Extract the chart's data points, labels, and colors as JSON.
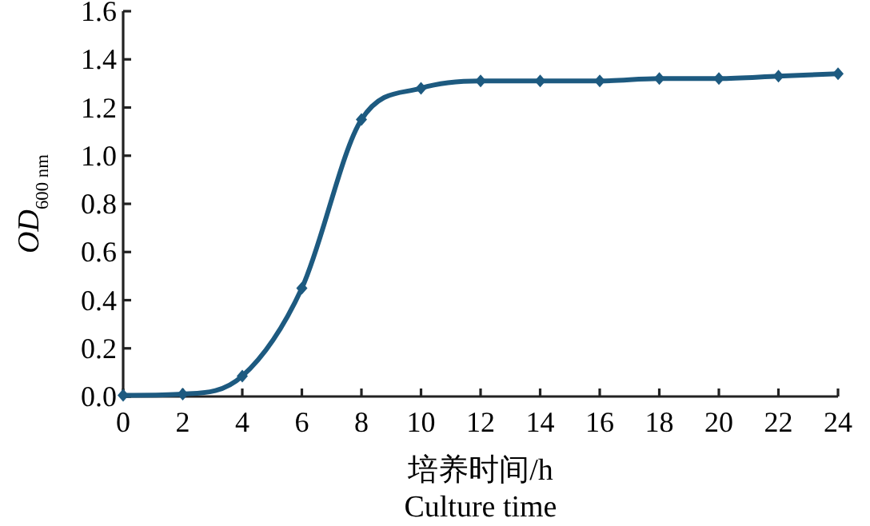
{
  "chart_data": {
    "type": "line",
    "xlabel": "培养时间/h\nCulture time",
    "ylabel": "*OD*$_{600 nm}$",
    "x": [
      0,
      2,
      4,
      6,
      8,
      10,
      12,
      14,
      16,
      18,
      20,
      22,
      24
    ],
    "series": [
      {
        "color": "#1d5a80",
        "values": [
          0.005,
          0.01,
          0.085,
          0.45,
          1.15,
          1.28,
          1.31,
          1.31,
          1.31,
          1.32,
          1.32,
          1.33,
          1.34
        ]
      }
    ],
    "xlim": [
      0,
      24
    ],
    "xticks": [
      0,
      2,
      4,
      6,
      8,
      10,
      12,
      14,
      16,
      18,
      20,
      22,
      24
    ],
    "ylim": [
      0,
      1.6
    ],
    "yticks": [
      {
        "value": 0,
        "label": "0.0"
      },
      {
        "value": 0.2,
        "label": "0.2"
      },
      {
        "value": 0.4,
        "label": "0.4"
      },
      {
        "value": 0.6,
        "label": "0.6"
      },
      {
        "value": 0.8,
        "label": "0.8"
      },
      {
        "value": 1.0,
        "label": "1.0"
      },
      {
        "value": 1.2,
        "label": "1.2"
      },
      {
        "value": 1.4,
        "label": "1.4"
      },
      {
        "value": 1.6,
        "label": "1.6"
      }
    ],
    "grid": false,
    "marker": "diamond",
    "line_style": "solid"
  }
}
